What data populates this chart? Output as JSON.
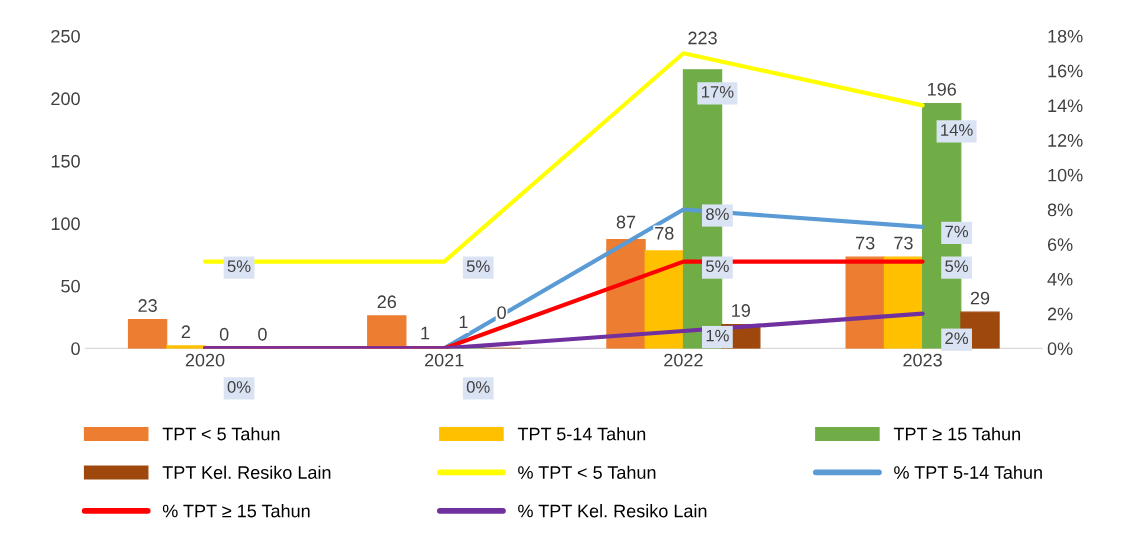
{
  "chart_data": {
    "type": "bar",
    "categories": [
      "2020",
      "2021",
      "2022",
      "2023"
    ],
    "series": [
      {
        "name": "TPT < 5 Tahun",
        "color": "#ed7d31",
        "values": [
          23,
          26,
          87,
          73
        ],
        "value_labels": [
          "23",
          "26",
          "87",
          "73"
        ]
      },
      {
        "name": "TPT 5-14 Tahun",
        "color": "#ffc000",
        "values": [
          2,
          1,
          78,
          73
        ],
        "value_labels": [
          "2",
          "1",
          "78",
          "73"
        ]
      },
      {
        "name": "TPT ≥ 15 Tahun",
        "color": "#70ad47",
        "values": [
          0,
          1,
          223,
          196
        ],
        "value_labels": [
          "0",
          "1",
          "223",
          "196"
        ]
      },
      {
        "name": "TPT Kel. Resiko Lain",
        "color": "#9e480e",
        "values": [
          0,
          0,
          19,
          29
        ],
        "value_labels": [
          "0",
          "0",
          "19",
          "29"
        ]
      },
      {
        "name": "% TPT < 5 Tahun",
        "type": "line",
        "axis": "y2",
        "color": "#ffff00",
        "values": [
          5,
          5,
          17,
          14
        ],
        "value_labels": [
          "5%",
          "5%",
          "17%",
          "14%"
        ]
      },
      {
        "name": "% TPT 5-14 Tahun",
        "type": "line",
        "axis": "y2",
        "color": "#5b9bd5",
        "values": [
          0,
          0,
          8,
          7
        ],
        "value_labels": [
          null,
          null,
          "8%",
          "7%"
        ]
      },
      {
        "name": "% TPT ≥ 15 Tahun",
        "type": "line",
        "axis": "y2",
        "color": "#ff0000",
        "values": [
          0,
          0,
          5,
          5
        ],
        "value_labels": [
          null,
          null,
          "5%",
          "5%"
        ]
      },
      {
        "name": "% TPT Kel. Resiko Lain",
        "type": "line",
        "axis": "y2",
        "color": "#7030a0",
        "values": [
          0,
          0,
          1,
          2
        ],
        "value_labels": [
          "0%",
          "0%",
          "1%",
          "2%"
        ]
      }
    ],
    "ylim": [
      0,
      250
    ],
    "yticks": [
      0,
      50,
      100,
      150,
      200,
      250
    ],
    "y2lim": [
      0,
      18
    ],
    "y2ticks": [
      {
        "value": 0,
        "label": "0%"
      },
      {
        "value": 2,
        "label": "2%"
      },
      {
        "value": 4,
        "label": "4%"
      },
      {
        "value": 6,
        "label": "6%"
      },
      {
        "value": 8,
        "label": "8%"
      },
      {
        "value": 10,
        "label": "10%"
      },
      {
        "value": 12,
        "label": "12%"
      },
      {
        "value": 14,
        "label": "14%"
      },
      {
        "value": 16,
        "label": "16%"
      },
      {
        "value": 18,
        "label": "18%"
      }
    ],
    "legend": "bottom",
    "grid": false,
    "marker": "none",
    "line_style": "solid"
  }
}
